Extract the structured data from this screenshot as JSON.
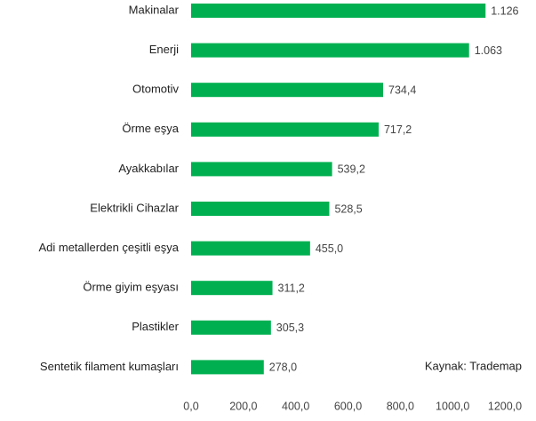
{
  "chart_data": {
    "type": "hbar",
    "categories": [
      "Makinalar",
      "Enerji",
      "Otomotiv",
      "Örme eşya",
      "Ayakkabılar",
      "Elektrikli Cihazlar",
      "Adi metallerden çeşitli eşya",
      "Örme giyim eşyası",
      "Plastikler",
      "Sentetik filament kumaşları"
    ],
    "values": [
      1126,
      1063,
      734.4,
      717.2,
      539.2,
      528.5,
      455.0,
      311.2,
      305.3,
      278.0
    ],
    "value_labels": [
      "1.126",
      "1.063",
      "734,4",
      "717,2",
      "539,2",
      "528,5",
      "455,0",
      "311,2",
      "305,3",
      "278,0"
    ],
    "color": "#00b050",
    "xlim": [
      0,
      1200
    ],
    "xticks": [
      {
        "value": 0,
        "label": "0,0"
      },
      {
        "value": 200,
        "label": "200,0"
      },
      {
        "value": 400,
        "label": "400,0"
      },
      {
        "value": 600,
        "label": "600,0"
      },
      {
        "value": 800,
        "label": "800,0"
      },
      {
        "value": 1000,
        "label": "1000,0"
      },
      {
        "value": 1200,
        "label": "1200,0"
      }
    ],
    "annotation": "Kaynak: Trademap"
  }
}
